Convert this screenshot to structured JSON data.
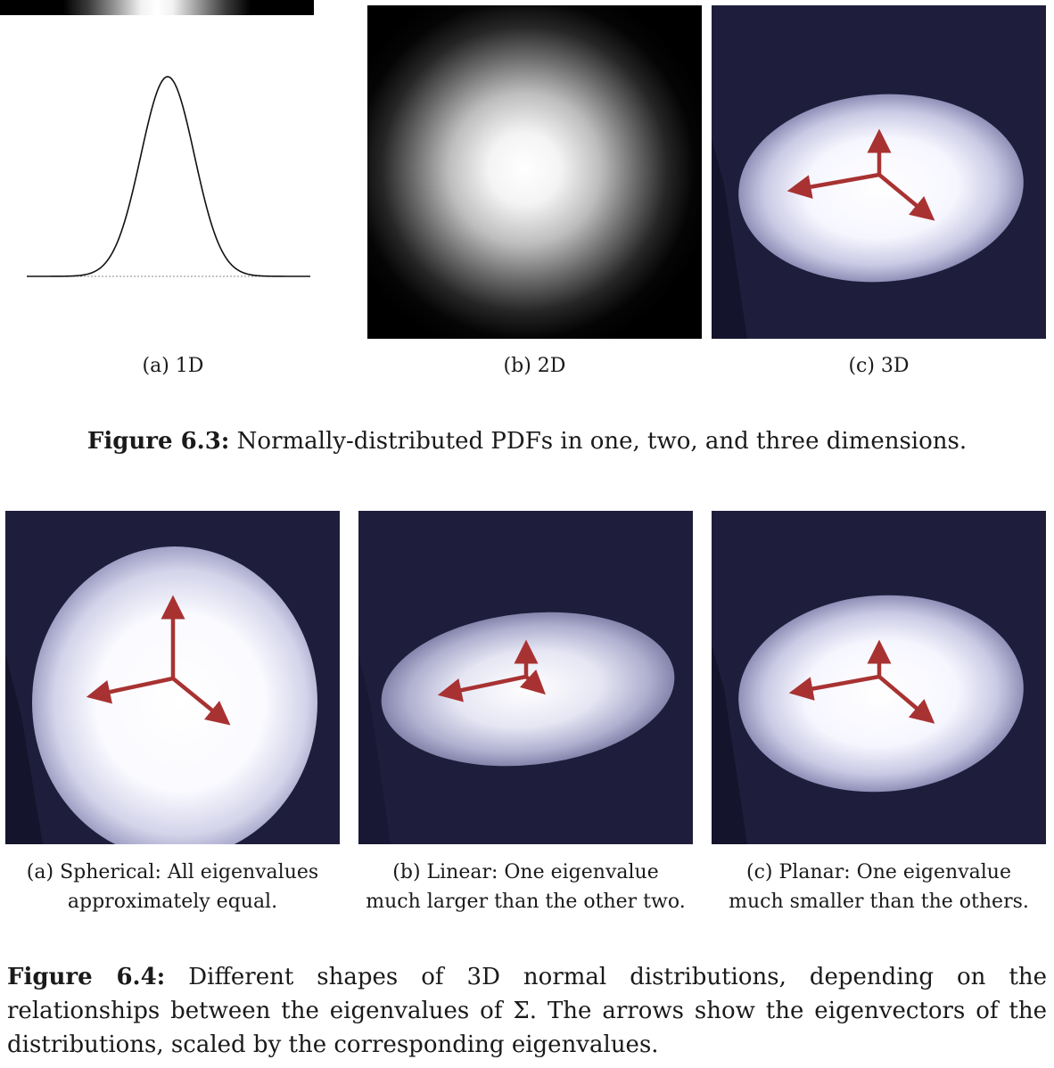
{
  "figure_6_3": {
    "subfigures": [
      {
        "label": "(a)  1D"
      },
      {
        "label": "(b)  2D"
      },
      {
        "label": "(c)  3D"
      }
    ],
    "caption_label": "Figure 6.3:",
    "caption_text": " Normally-distributed PDFs in one, two, and three dimensions."
  },
  "figure_6_4": {
    "subfigures": [
      {
        "line1": "(a)  Spherical: All eigenvalues",
        "line2": "approximately equal."
      },
      {
        "line1": "(b)  Linear: One eigenvalue",
        "line2": "much larger than the other two."
      },
      {
        "line1": "(c)  Planar: One eigenvalue",
        "line2": "much smaller than the others."
      }
    ],
    "caption_label": "Figure 6.4:",
    "caption_text": " Different shapes of 3D normal distributions, depending on the relationships between the eigenvalues of Σ. The arrows show the eigenvectors of the distributions, scaled by the corresponding eigenvalues."
  },
  "colors": {
    "volume_background": "#1e1e3c",
    "arrow": "#a03030"
  }
}
